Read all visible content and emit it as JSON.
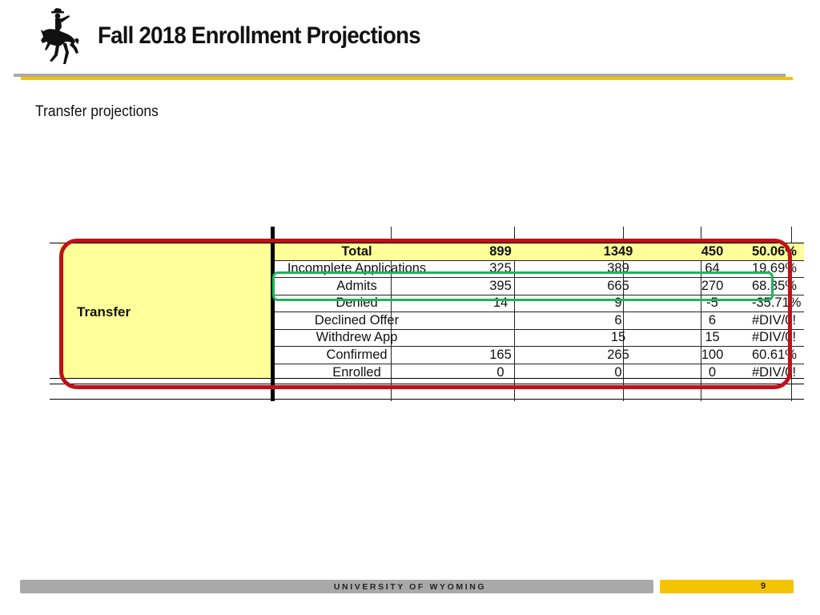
{
  "header": {
    "title": "Fall 2018 Enrollment Projections",
    "logo_icon": "bucking-horse-rider-icon"
  },
  "subtitle": "Transfer projections",
  "table": {
    "group_label": "Transfer",
    "rows": [
      {
        "label": "Total",
        "v1": "899",
        "v2": "1349",
        "v3": "450",
        "v4": "50.06%"
      },
      {
        "label": "Incomplete Applications",
        "v1": "325",
        "v2": "389",
        "v3": "64",
        "v4": "19.69%"
      },
      {
        "label": "Admits",
        "v1": "395",
        "v2": "665",
        "v3": "270",
        "v4": "68.35%"
      },
      {
        "label": "Denied",
        "v1": "14",
        "v2": "9",
        "v3": "-5",
        "v4": "-35.71%"
      },
      {
        "label": "Declined Offer",
        "v1": "",
        "v2": "6",
        "v3": "6",
        "v4": "#DIV/0!"
      },
      {
        "label": "Withdrew App",
        "v1": "",
        "v2": "15",
        "v3": "15",
        "v4": "#DIV/0!"
      },
      {
        "label": "Confirmed",
        "v1": "165",
        "v2": "265",
        "v3": "100",
        "v4": "60.61%"
      },
      {
        "label": "Enrolled",
        "v1": "0",
        "v2": "0",
        "v3": "0",
        "v4": "#DIV/0!"
      }
    ]
  },
  "highlights": {
    "outer_color": "#c0101a",
    "inner_color": "#1fb35a"
  },
  "footer": {
    "university": "UNIVERSITY OF WYOMING",
    "page_number": "9"
  },
  "colors": {
    "gold": "#f5c400",
    "gray_bar": "#a9a9a9",
    "cell_yellow": "#ffff99"
  }
}
